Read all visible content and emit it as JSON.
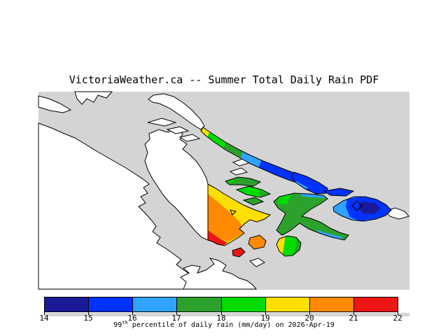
{
  "title": "VictoriaWeather.ca -- Summer Total Daily Rain PDF",
  "map": {
    "sea_color": "#d4d4d4",
    "land_color": "#ffffff",
    "coast_color": "#000000",
    "marker_shape": "diamond",
    "value_colors": {
      "navy": "#1a1a99",
      "blue": "#0033ff",
      "sky": "#30a2ff",
      "green": "#2ca12c",
      "bright_green": "#00dc00",
      "yellow": "#ffdf00",
      "orange": "#ff8a00",
      "red": "#ee1515"
    }
  },
  "colorbar": {
    "min": 14,
    "max": 22,
    "ticks": [
      "14",
      "15",
      "16",
      "17",
      "18",
      "19",
      "20",
      "21",
      "22"
    ],
    "segment_colors": [
      "#1a1a99",
      "#0033ff",
      "#30a2ff",
      "#2ca12c",
      "#00dc00",
      "#ffdf00",
      "#ff8a00",
      "#ee1515"
    ],
    "caption_prefix": "99",
    "caption_sup": "th",
    "caption_rest": " percentile of daily rain (mm/day) on 2026-Apr-19"
  }
}
